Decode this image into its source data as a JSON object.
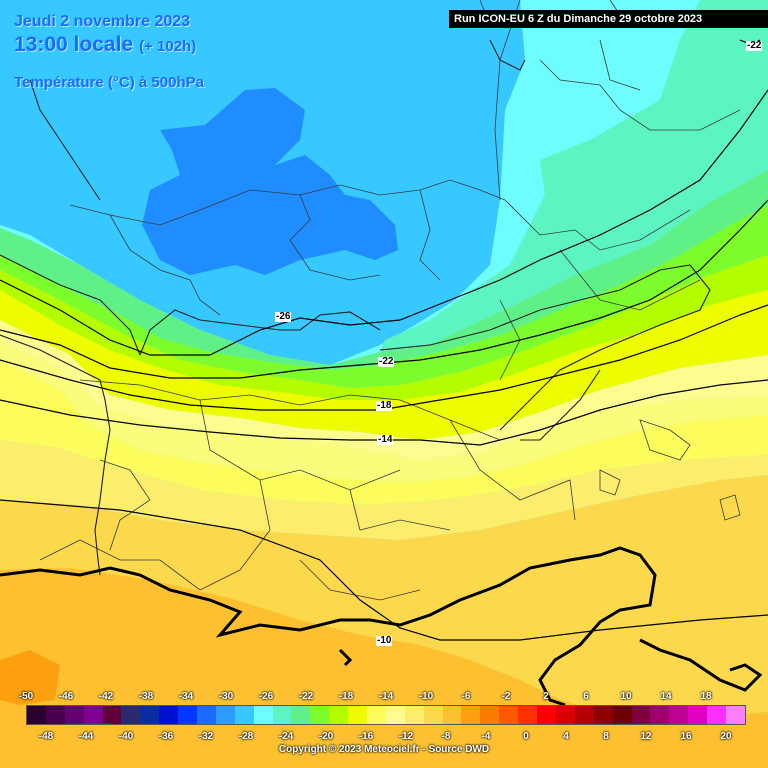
{
  "header": {
    "date": "Jeudi 2 novembre 2023",
    "time": "13:00 locale",
    "lead": "(+ 102h)",
    "parameter": "Température (°C) à 500hPa"
  },
  "run_banner": "Run ICON-EU 6 Z du Dimanche 29 octobre 2023",
  "isotherm_labels": [
    "-26",
    "-22",
    "-18",
    "-14",
    "-10",
    "-22"
  ],
  "legend": {
    "top_ticks": [
      "-50",
      "-46",
      "-42",
      "-38",
      "-34",
      "-30",
      "-26",
      "-22",
      "-18",
      "-14",
      "-10",
      "-6",
      "-2",
      "2",
      "6",
      "10",
      "14",
      "18"
    ],
    "bottom_ticks": [
      "-48",
      "-44",
      "-40",
      "-36",
      "-32",
      "-28",
      "-24",
      "-20",
      "-16",
      "-12",
      "-8",
      "-4",
      "0",
      "4",
      "8",
      "12",
      "16",
      "20"
    ],
    "colors": [
      "#2a0030",
      "#48004d",
      "#66006e",
      "#800090",
      "#60003a",
      "#2a2a6e",
      "#0a2ea0",
      "#0010d0",
      "#0038ff",
      "#1a6cff",
      "#2c9cff",
      "#37c8ff",
      "#6ffcfc",
      "#5cf4c0",
      "#60f088",
      "#7cfc2c",
      "#b4fc00",
      "#eefc00",
      "#fcfc5c",
      "#fcfc90",
      "#fcee6c",
      "#fcd84c",
      "#fcc030",
      "#fca010",
      "#fc7c00",
      "#fc5800",
      "#fc3000",
      "#fc0000",
      "#d80000",
      "#b40000",
      "#900000",
      "#6c0000",
      "#800040",
      "#a0006c",
      "#c00090",
      "#e000c0",
      "#fc30fc",
      "#fc80fc"
    ]
  },
  "copyright": "Copyright © 2023 Meteociel.fr - Source DWD"
}
